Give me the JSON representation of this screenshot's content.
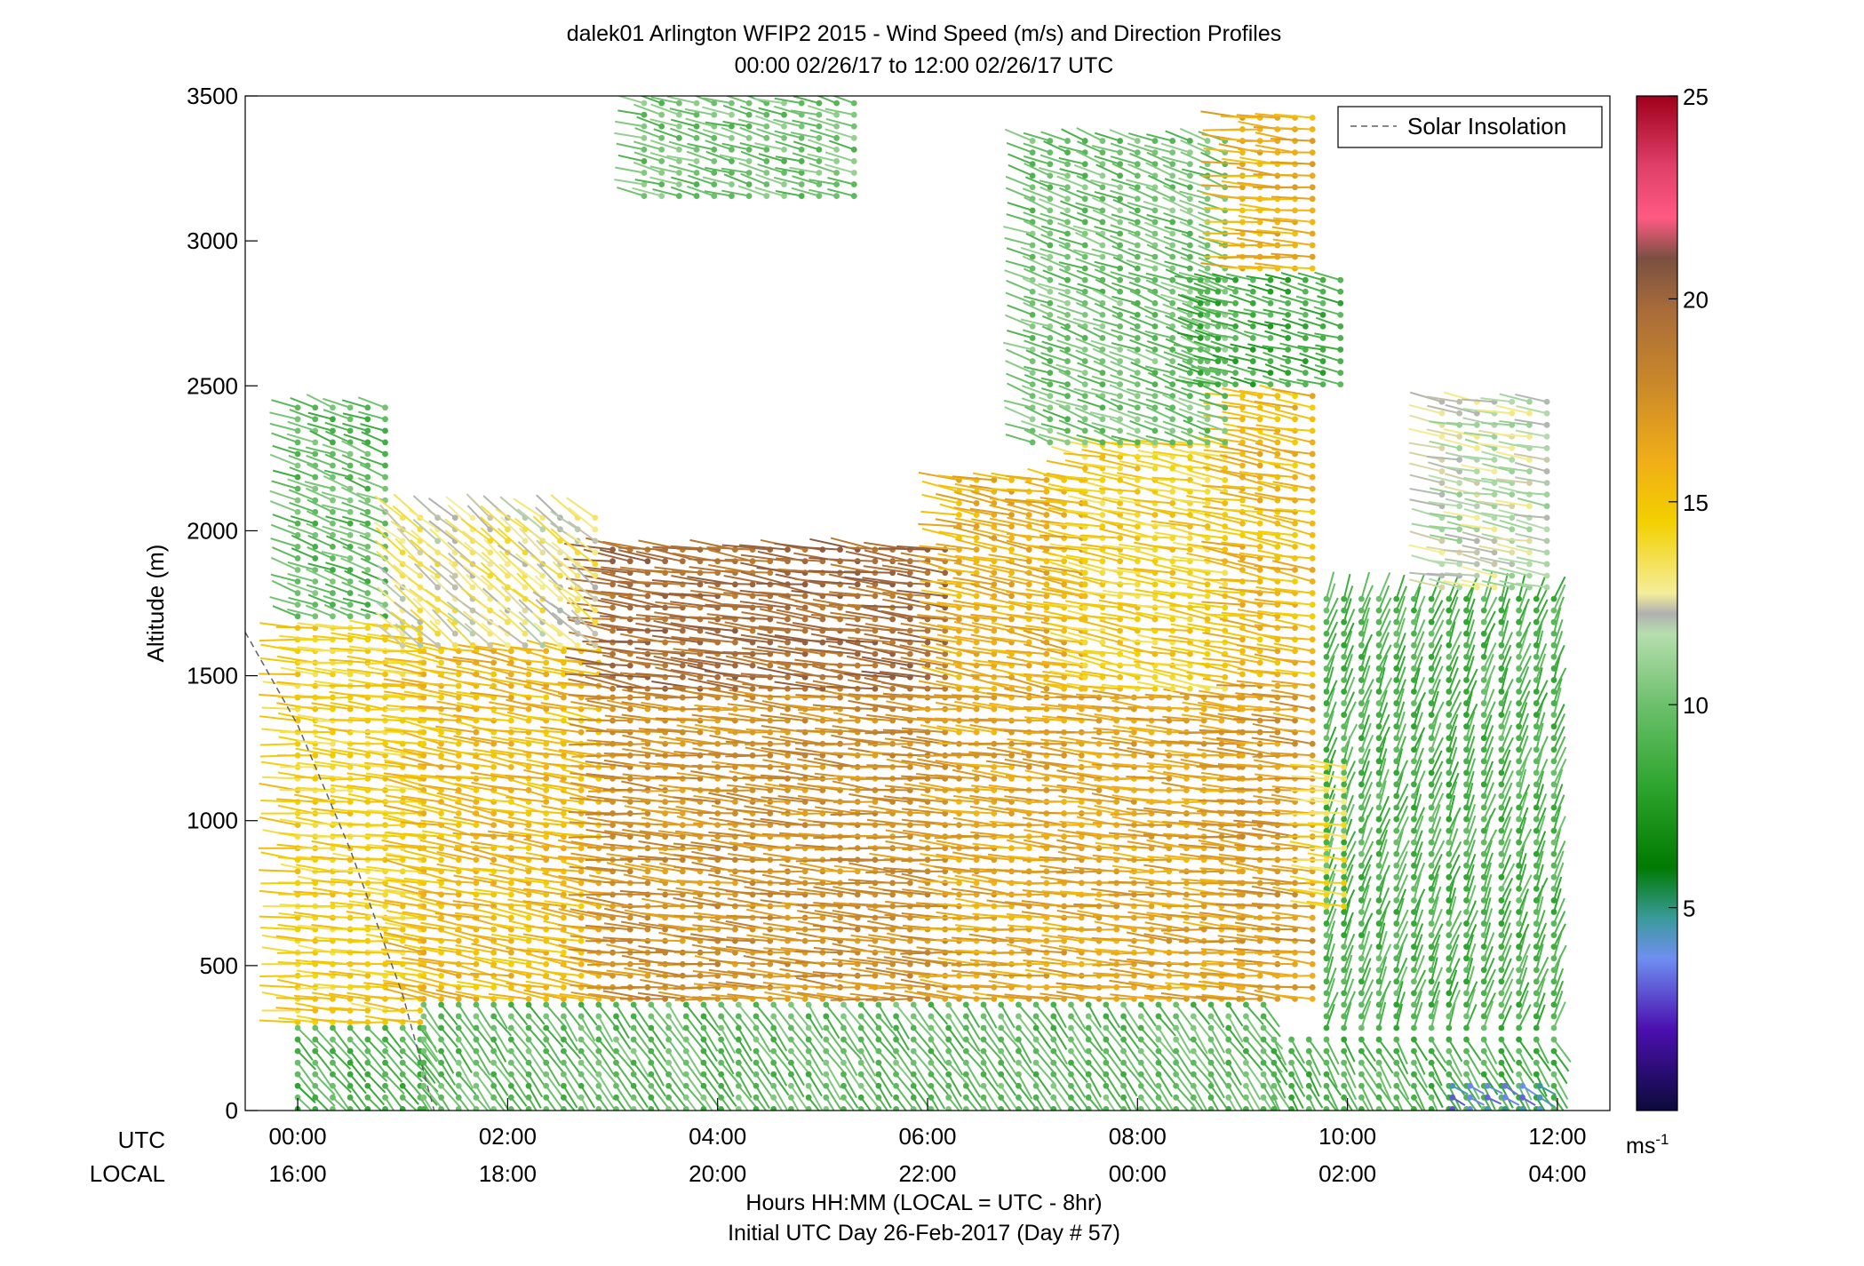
{
  "chart_data": {
    "type": "wind-profile",
    "title": "dalek01 Arlington WFIP2 2015 - Wind Speed (m/s) and Direction Profiles",
    "subtitle": "00:00 02/26/17 to 12:00 02/26/17  UTC",
    "ylabel": "Altitude (m)",
    "ylim": [
      0,
      3500
    ],
    "yticks": [
      "0",
      "500",
      "1000",
      "1500",
      "2000",
      "2500",
      "3000",
      "3500"
    ],
    "xlim_hours": [
      -0.5,
      12.5
    ],
    "xticks_utc": [
      "00:00",
      "02:00",
      "04:00",
      "06:00",
      "08:00",
      "10:00",
      "12:00"
    ],
    "xticks_local": [
      "16:00",
      "18:00",
      "20:00",
      "22:00",
      "00:00",
      "02:00",
      "04:00"
    ],
    "xtick_hours": [
      0,
      2,
      4,
      6,
      8,
      10,
      12
    ],
    "row_label_utc": "UTC",
    "row_label_local": "LOCAL",
    "xlabel": "Hours HH:MM  (LOCAL = UTC - 8hr)",
    "xlabel2": "Initial UTC Day 26-Feb-2017 (Day # 57)",
    "legend": {
      "label": "Solar Insolation",
      "placement": "top-right"
    },
    "colorbar": {
      "range": [
        0,
        25
      ],
      "ticks": [
        "5",
        "10",
        "15",
        "20",
        "25"
      ],
      "unit": "ms",
      "unit_exp": "-1"
    },
    "regions": [
      {
        "t0": 0,
        "t1": 1.2,
        "z0": 0,
        "z1": 300,
        "speed": 9,
        "dir": 320
      },
      {
        "t0": 1.2,
        "t1": 9.3,
        "z0": 0,
        "z1": 380,
        "speed": 9.5,
        "dir": 325
      },
      {
        "t0": 9.3,
        "t1": 12,
        "z0": 0,
        "z1": 280,
        "speed": 9,
        "dir": 330
      },
      {
        "t0": 11.0,
        "t1": 12,
        "z0": 0,
        "z1": 90,
        "speed": 4,
        "dir": 300
      },
      {
        "t0": 0,
        "t1": 1.2,
        "z0": 300,
        "z1": 1700,
        "speed": 14.5,
        "dir": 95
      },
      {
        "t0": 1.2,
        "t1": 3.0,
        "z0": 380,
        "z1": 1600,
        "speed": 15.5,
        "dir": 100
      },
      {
        "t0": 3.0,
        "t1": 6.3,
        "z0": 380,
        "z1": 1450,
        "speed": 17.5,
        "dir": 95
      },
      {
        "t0": 3.0,
        "t1": 6.3,
        "z0": 1450,
        "z1": 1950,
        "speed": 19.5,
        "dir": 98
      },
      {
        "t0": 6.3,
        "t1": 9.0,
        "z0": 380,
        "z1": 1450,
        "speed": 16.5,
        "dir": 95
      },
      {
        "t0": 6.3,
        "t1": 7.5,
        "z0": 1450,
        "z1": 2200,
        "speed": 16,
        "dir": 100
      },
      {
        "t0": 7.5,
        "t1": 9.0,
        "z0": 1450,
        "z1": 2300,
        "speed": 14.5,
        "dir": 100
      },
      {
        "t0": 9.0,
        "t1": 9.8,
        "z0": 380,
        "z1": 1500,
        "speed": 17,
        "dir": 95
      },
      {
        "t0": 9.0,
        "t1": 9.8,
        "z0": 1500,
        "z1": 2500,
        "speed": 15.5,
        "dir": 100
      },
      {
        "t0": 9.8,
        "t1": 12,
        "z0": 280,
        "z1": 1800,
        "speed": 9,
        "dir": 200
      },
      {
        "t0": 9.8,
        "t1": 10.1,
        "z0": 700,
        "z1": 1200,
        "speed": 14,
        "dir": 95
      },
      {
        "t0": 0,
        "t1": 1.0,
        "z0": 1700,
        "z1": 2450,
        "speed": 9.5,
        "dir": 110
      },
      {
        "t0": 1.0,
        "t1": 3.0,
        "z0": 1600,
        "z1": 2050,
        "speed": 13,
        "dir": 130
      },
      {
        "t0": 7.0,
        "t1": 9.0,
        "z0": 2300,
        "z1": 3350,
        "speed": 10,
        "dir": 110
      },
      {
        "t0": 8.6,
        "t1": 10.0,
        "z0": 2500,
        "z1": 2900,
        "speed": 8.5,
        "dir": 105
      },
      {
        "t0": 9.0,
        "t1": 9.8,
        "z0": 2900,
        "z1": 3450,
        "speed": 16,
        "dir": 95
      },
      {
        "t0": 3.3,
        "t1": 5.4,
        "z0": 3150,
        "z1": 3500,
        "speed": 10,
        "dir": 105
      },
      {
        "t0": 10.9,
        "t1": 12,
        "z0": 1800,
        "z1": 2450,
        "speed": 12,
        "dir": 100
      }
    ],
    "solar_insolation": [
      [
        -0.5,
        1650
      ],
      [
        0,
        1330
      ],
      [
        0.5,
        900
      ],
      [
        1.0,
        400
      ],
      [
        1.3,
        0
      ]
    ]
  }
}
